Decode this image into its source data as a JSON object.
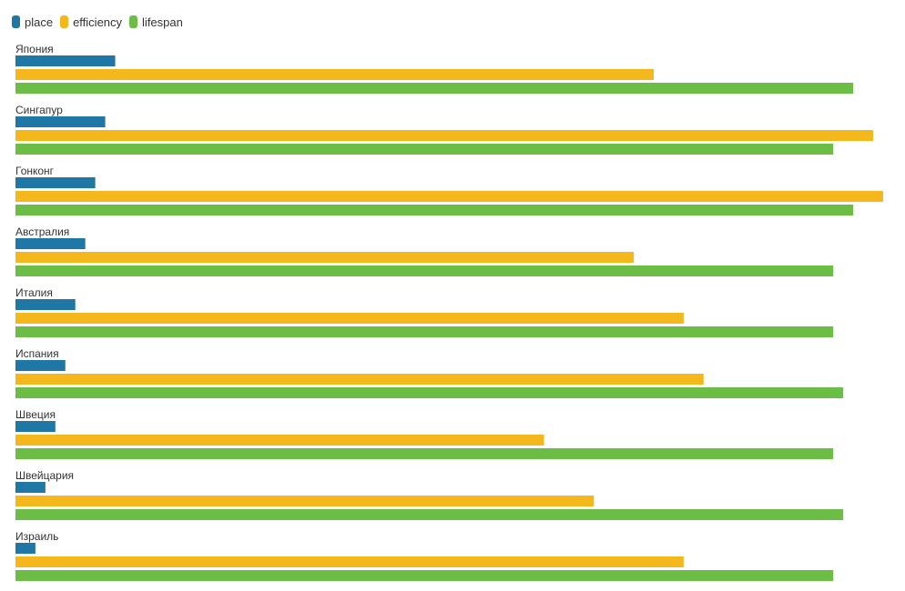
{
  "chart_data": {
    "type": "bar",
    "orientation": "horizontal",
    "title": "",
    "xlabel": "",
    "ylabel": "",
    "grid": false,
    "legend_position": "top-left",
    "xlim": [
      0,
      87
    ],
    "categories": [
      "Япония",
      "Сингапур",
      "Гонконг",
      "Австралия",
      "Италия",
      "Испания",
      "Швеция",
      "Швейцария",
      "Израиль"
    ],
    "series": [
      {
        "name": "place",
        "color": "#1f77a6",
        "values": [
          10,
          9,
          8,
          7,
          6,
          5,
          4,
          3,
          2
        ]
      },
      {
        "name": "efficiency",
        "color": "#f5b81c",
        "values": [
          64,
          86,
          87,
          62,
          67,
          69,
          53,
          58,
          67
        ]
      },
      {
        "name": "lifespan",
        "color": "#6cbd45",
        "values": [
          84,
          82,
          84,
          82,
          82,
          83,
          82,
          83,
          82
        ]
      }
    ]
  }
}
